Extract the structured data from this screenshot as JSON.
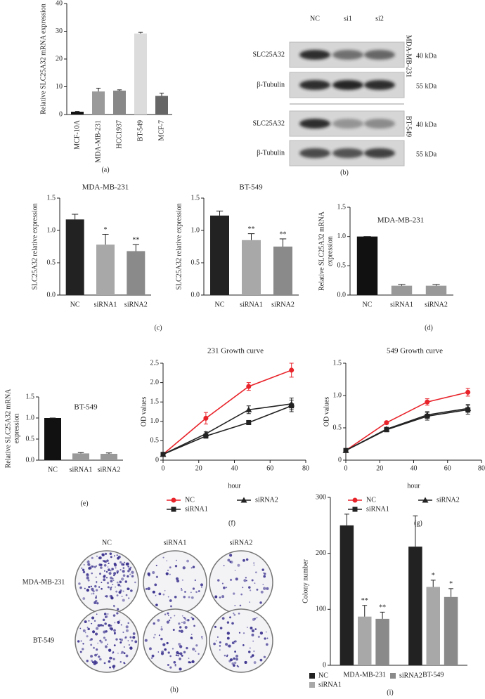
{
  "western_blot": {
    "label": "(b)",
    "lanes": [
      "NC",
      "si1",
      "si2"
    ],
    "cell_lines": [
      "MDA-MB-231",
      "BT-549"
    ],
    "rows": [
      {
        "protein": "SLC25A32",
        "size": "40 kDa"
      },
      {
        "protein": "β-Tubulin",
        "size": "55 kDa"
      },
      {
        "protein": "SLC25A32",
        "size": "40 kDa"
      },
      {
        "protein": "β-Tubulin",
        "size": "55 kDa"
      }
    ]
  },
  "colony_assay": {
    "label": "(h)",
    "columns": [
      "NC",
      "siRNA1",
      "siRNA2"
    ],
    "rows": [
      "MDA-MB-231",
      "BT-549"
    ]
  },
  "chart_data": [
    {
      "type": "bar",
      "label": "(a)",
      "ylabel": [
        "Relative SLC25A32 mRNA expression"
      ],
      "categories": [
        "MCF-10A",
        "MDA-MB-231",
        "HCC1937",
        "BT-549",
        "MCF-7"
      ],
      "values": [
        1,
        8.3,
        8.6,
        29.2,
        6.7
      ],
      "errors": [
        0.1,
        1.2,
        0.3,
        0.4,
        1.0
      ],
      "colors": [
        "#111111",
        "#9a9a9a",
        "#888888",
        "#dcdcdc",
        "#666666"
      ],
      "ylim": [
        0,
        40
      ],
      "yticks": [
        0,
        10,
        20,
        30,
        40
      ]
    },
    {
      "type": "bar",
      "label": "(c)",
      "title": "MDA-MB-231",
      "ylabel": [
        "SLC25A32 relative expression"
      ],
      "categories": [
        "NC",
        "siRNA1",
        "siRNA2"
      ],
      "values": [
        1.17,
        0.78,
        0.68
      ],
      "errors": [
        0.08,
        0.16,
        0.1
      ],
      "annotations": [
        null,
        "*",
        "**"
      ],
      "colors": [
        "#222222",
        "#a8a8a8",
        "#8a8a8a"
      ],
      "ylim": [
        0,
        1.5
      ],
      "yticks": [
        {
          "value": 0,
          "label": "0.0"
        },
        0.5,
        {
          "value": 1,
          "label": "1.0"
        },
        1.5
      ]
    },
    {
      "type": "bar",
      "title": "BT-549",
      "ylabel": [
        "SLC25A32 relative expression"
      ],
      "categories": [
        "NC",
        "siRNA1",
        "siRNA2"
      ],
      "values": [
        1.23,
        0.85,
        0.75
      ],
      "errors": [
        0.07,
        0.1,
        0.12
      ],
      "annotations": [
        null,
        "**",
        "**"
      ],
      "colors": [
        "#222222",
        "#a8a8a8",
        "#8a8a8a"
      ],
      "ylim": [
        0,
        1.5
      ],
      "yticks": [
        {
          "value": 0,
          "label": "0.0"
        },
        0.5,
        {
          "value": 1,
          "label": "1.0"
        },
        1.5
      ]
    },
    {
      "type": "bar",
      "label": "(d)",
      "title": "MDA-MB-231",
      "ylabel": [
        "Relative SLC25A32 mRNA",
        "expression"
      ],
      "categories": [
        "NC",
        "siRNA1",
        "siRNA2"
      ],
      "values": [
        1.0,
        0.16,
        0.16
      ],
      "errors": [
        0,
        0.02,
        0.02
      ],
      "colors": [
        "#111111",
        "#999999",
        "#999999"
      ],
      "ylim": [
        0,
        1.5
      ],
      "yticks": [
        {
          "value": 0,
          "label": "0.0"
        },
        0.5,
        {
          "value": 1,
          "label": "1.0"
        },
        1.5
      ]
    },
    {
      "type": "bar",
      "label": "(e)",
      "title": "BT-549",
      "ylabel": [
        "Relative SLC25A32 mRNA",
        "expression"
      ],
      "categories": [
        "NC",
        "siRNA1",
        "siRNA2"
      ],
      "values": [
        1.0,
        0.16,
        0.15
      ],
      "errors": [
        0,
        0.02,
        0.02
      ],
      "colors": [
        "#111111",
        "#999999",
        "#999999"
      ],
      "ylim": [
        0,
        1.5
      ],
      "yticks": [
        {
          "value": 0,
          "label": "0.0"
        },
        0.5,
        {
          "value": 1,
          "label": "1.0"
        },
        1.5
      ]
    },
    {
      "type": "line",
      "label": "(f)",
      "title": "231 Growth curve",
      "xlabel": "hour",
      "ylabel": [
        "OD values"
      ],
      "x": [
        0,
        24,
        48,
        72
      ],
      "xlim": [
        0,
        80
      ],
      "xticks": [
        0,
        20,
        40,
        60,
        80
      ],
      "ylim": [
        0,
        2.5
      ],
      "yticks": [
        0,
        0.5,
        {
          "value": 1,
          "label": "1.0"
        },
        1.5,
        {
          "value": 2,
          "label": "2.0"
        },
        2.5
      ],
      "series": [
        {
          "name": "NC",
          "color": "#e8232a",
          "marker": "circle",
          "values": [
            0.15,
            1.08,
            1.9,
            2.32
          ],
          "errors": [
            0.02,
            0.15,
            0.1,
            0.18
          ]
        },
        {
          "name": "siRNA1",
          "color": "#222222",
          "marker": "square",
          "values": [
            0.15,
            0.62,
            0.97,
            1.4
          ],
          "errors": [
            0.02,
            0.05,
            0.05,
            0.15
          ]
        },
        {
          "name": "siRNA2",
          "color": "#222222",
          "marker": "triangle",
          "values": [
            0.15,
            0.68,
            1.3,
            1.45
          ],
          "errors": [
            0.02,
            0.05,
            0.1,
            0.15
          ]
        }
      ]
    },
    {
      "type": "line",
      "label": "(g)",
      "title": "549 Growth curve",
      "xlabel": "hour",
      "ylabel": [
        "OD values"
      ],
      "x": [
        0,
        24,
        48,
        72
      ],
      "xlim": [
        0,
        80
      ],
      "xticks": [
        0,
        20,
        40,
        60,
        80
      ],
      "ylim": [
        0,
        1.5
      ],
      "yticks": [
        0,
        0.5,
        {
          "value": 1,
          "label": "1.0"
        },
        1.5
      ],
      "series": [
        {
          "name": "NC",
          "color": "#e8232a",
          "marker": "circle",
          "values": [
            0.15,
            0.58,
            0.9,
            1.05
          ],
          "errors": [
            0.02,
            0.02,
            0.05,
            0.06
          ]
        },
        {
          "name": "siRNA1",
          "color": "#222222",
          "marker": "square",
          "values": [
            0.15,
            0.47,
            0.68,
            0.78
          ],
          "errors": [
            0.02,
            0.03,
            0.06,
            0.07
          ]
        },
        {
          "name": "siRNA2",
          "color": "#222222",
          "marker": "triangle",
          "values": [
            0.15,
            0.48,
            0.7,
            0.8
          ],
          "errors": [
            0.02,
            0.03,
            0.05,
            0.06
          ]
        }
      ]
    },
    {
      "type": "bar",
      "label": "(i)",
      "ylabel": [
        "Colony number"
      ],
      "categories": [
        "MDA-MB-231",
        "BT-549"
      ],
      "ylim": [
        0,
        300
      ],
      "yticks": [
        0,
        100,
        200,
        300
      ],
      "series": [
        {
          "name": "NC",
          "color": "#222222",
          "values": [
            250,
            212
          ],
          "errors": [
            20,
            55
          ]
        },
        {
          "name": "siRNA1",
          "color": "#a8a8a8",
          "values": [
            87,
            140
          ],
          "errors": [
            20,
            12
          ],
          "annotations": [
            "**",
            "*"
          ]
        },
        {
          "name": "siRNA2",
          "color": "#8a8a8a",
          "values": [
            83,
            122
          ],
          "errors": [
            12,
            15
          ],
          "annotations": [
            "**",
            "*"
          ]
        }
      ]
    }
  ]
}
